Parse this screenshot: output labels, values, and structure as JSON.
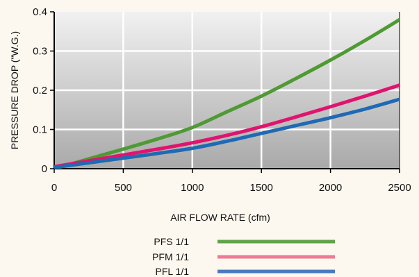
{
  "chart_data": {
    "type": "line",
    "title": "",
    "xlabel": "AIR FLOW RATE (cfm)",
    "ylabel": "PRESSURE DROP (\"W.G.)",
    "xlim": [
      0,
      2500
    ],
    "ylim": [
      0,
      0.4
    ],
    "x_ticks": [
      0,
      500,
      1000,
      1500,
      2000,
      2500
    ],
    "x_tick_labels": [
      "0",
      "500",
      "1000",
      "1500",
      "2000",
      "2500"
    ],
    "y_ticks": [
      0,
      0.1,
      0.2,
      0.3,
      0.4
    ],
    "y_tick_labels": [
      "0",
      "0.1",
      "0.2",
      "0.3",
      "0.4"
    ],
    "grid": true,
    "legend_position": "bottom-center",
    "background": "gray vertical gradient",
    "series": [
      {
        "name": "PFS 1/1",
        "color": "#4f9a34",
        "legend_color": "#62a24a",
        "x": [
          0,
          250,
          500,
          750,
          1000,
          1250,
          1500,
          1750,
          2000,
          2250,
          2500
        ],
        "y": [
          0.0,
          0.025,
          0.05,
          0.076,
          0.105,
          0.145,
          0.185,
          0.23,
          0.277,
          0.327,
          0.38
        ]
      },
      {
        "name": "PFM 1/1",
        "color": "#e0146e",
        "legend_color": "#ee7a93",
        "x": [
          0,
          250,
          500,
          750,
          1000,
          1250,
          1500,
          1750,
          2000,
          2250,
          2500
        ],
        "y": [
          0.005,
          0.02,
          0.035,
          0.05,
          0.066,
          0.085,
          0.107,
          0.132,
          0.158,
          0.185,
          0.213
        ]
      },
      {
        "name": "PFL 1/1",
        "color": "#1e6ab4",
        "legend_color": "#4a79c0",
        "x": [
          0,
          250,
          500,
          750,
          1000,
          1250,
          1500,
          1750,
          2000,
          2250,
          2500
        ],
        "y": [
          0.003,
          0.015,
          0.027,
          0.039,
          0.052,
          0.07,
          0.09,
          0.11,
          0.13,
          0.152,
          0.177
        ]
      }
    ]
  }
}
